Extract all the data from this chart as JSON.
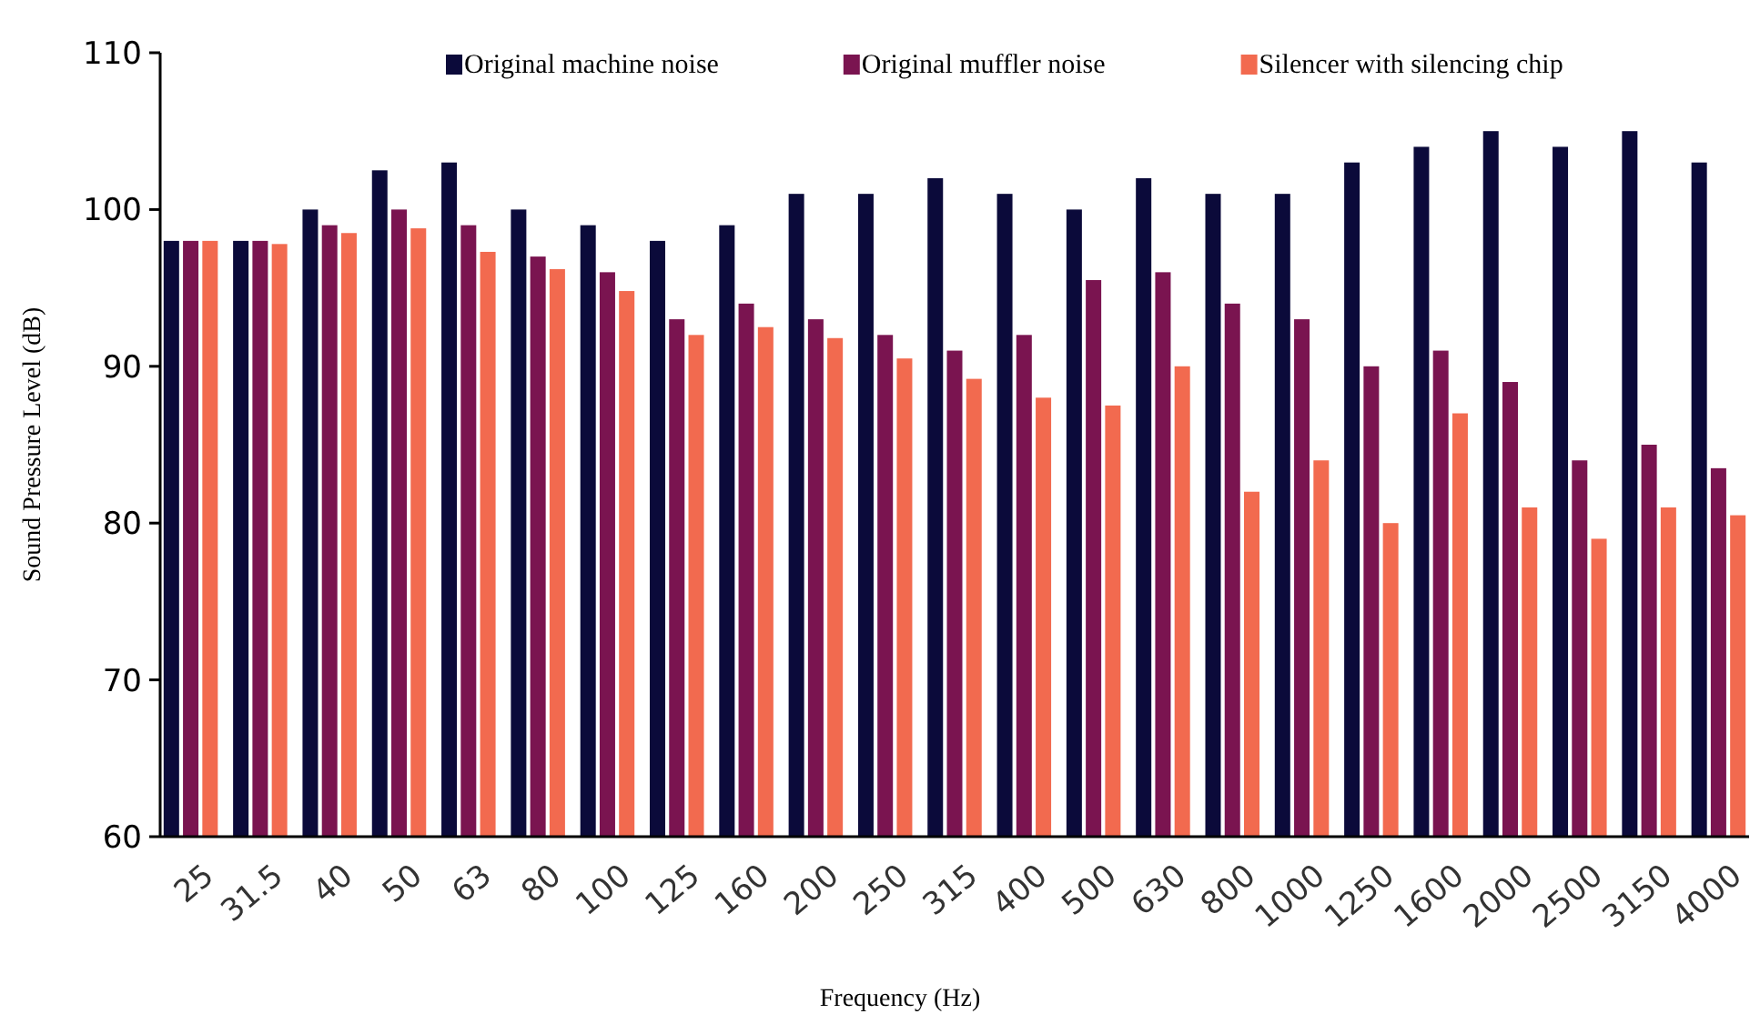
{
  "chart_data": {
    "type": "bar",
    "xlabel": "Frequency (Hz)",
    "ylabel": "Sound Pressure Level (dB)",
    "categories": [
      "25",
      "31.5",
      "40",
      "50",
      "63",
      "80",
      "100",
      "125",
      "160",
      "200",
      "250",
      "315",
      "400",
      "500",
      "630",
      "800",
      "1000",
      "1250",
      "1600",
      "2000",
      "2500",
      "3150",
      "4000"
    ],
    "series": [
      {
        "name": "Original machine noise",
        "color": "#0b0a3a",
        "values": [
          98,
          98,
          100,
          102.5,
          103,
          100,
          99,
          98,
          99,
          101,
          101,
          102,
          101,
          100,
          102,
          101,
          101,
          103,
          104,
          105,
          104,
          105,
          103
        ]
      },
      {
        "name": "Original muffler noise",
        "color": "#7a1450",
        "values": [
          98,
          98,
          99,
          100,
          99,
          97,
          96,
          93,
          94,
          93,
          92,
          91,
          92,
          95.5,
          96,
          94,
          93,
          90,
          91,
          89,
          84,
          85,
          83.5
        ]
      },
      {
        "name": "Silencer with silencing chip",
        "color": "#f26a4f",
        "values": [
          98,
          97.8,
          98.5,
          98.8,
          97.3,
          96.2,
          94.8,
          92,
          92.5,
          91.8,
          90.5,
          89.2,
          88,
          87.5,
          90,
          82,
          84,
          80,
          87,
          81,
          79,
          81,
          80.5
        ]
      }
    ],
    "ylim": [
      60,
      110
    ],
    "yticks": [
      60,
      70,
      80,
      90,
      100,
      110
    ],
    "grid": false,
    "legend": "top"
  }
}
